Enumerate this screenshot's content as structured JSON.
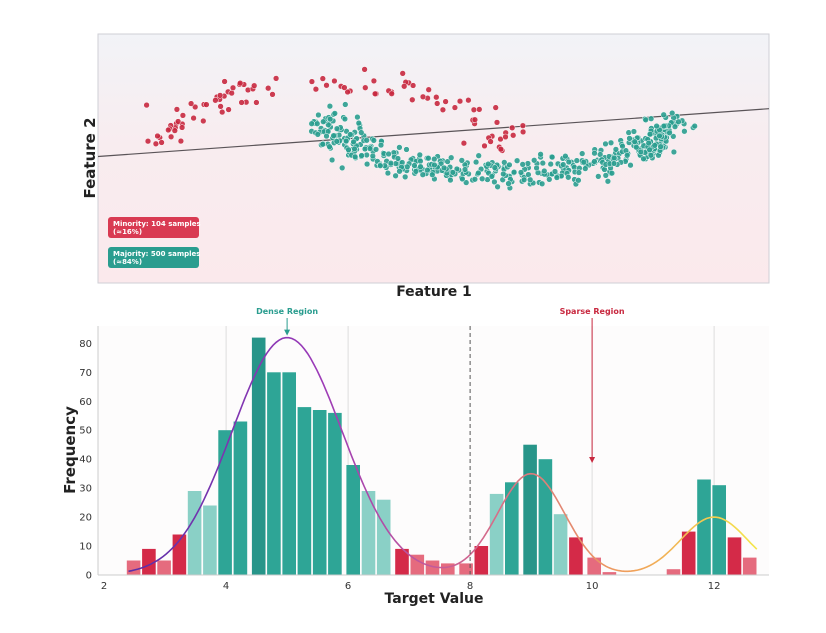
{
  "chart_data": [
    {
      "type": "scatter",
      "title": "",
      "xlabel": "Feature 1",
      "ylabel": "Feature 2",
      "xlim": [
        -1.4,
        2.6
      ],
      "ylim": [
        -1.2,
        1.3
      ],
      "grid": false,
      "decision_line": {
        "x": [
          -1.4,
          2.6
        ],
        "y": [
          0.07,
          0.55
        ]
      },
      "series": [
        {
          "name": "Minority",
          "color": "#c8283f",
          "count": 104,
          "label": "Minority: 104 samples",
          "share": "(≈16%)"
        },
        {
          "name": "Majority",
          "color": "#2a9d8f",
          "count": 500,
          "label": "Majority: 500 samples",
          "share": "(≈84%)"
        }
      ]
    },
    {
      "type": "bar",
      "title": "",
      "xlabel": "Target Value",
      "ylabel": "Frequency",
      "xlim": [
        1.9,
        12.9
      ],
      "ylim": [
        0,
        86
      ],
      "xticks": [
        "2",
        "4",
        "6",
        "8",
        "10",
        "12"
      ],
      "yticks": [
        "0",
        "10",
        "20",
        "30",
        "40",
        "50",
        "60",
        "70",
        "80"
      ],
      "bin_width": 0.255,
      "bins": [
        {
          "x": 2.5,
          "y": 5
        },
        {
          "x": 2.75,
          "y": 9
        },
        {
          "x": 3.0,
          "y": 5
        },
        {
          "x": 3.25,
          "y": 14
        },
        {
          "x": 3.5,
          "y": 29
        },
        {
          "x": 3.75,
          "y": 24
        },
        {
          "x": 4.0,
          "y": 50
        },
        {
          "x": 4.25,
          "y": 53
        },
        {
          "x": 4.55,
          "y": 82
        },
        {
          "x": 4.8,
          "y": 70
        },
        {
          "x": 5.05,
          "y": 70
        },
        {
          "x": 5.3,
          "y": 58
        },
        {
          "x": 5.55,
          "y": 57
        },
        {
          "x": 5.8,
          "y": 56
        },
        {
          "x": 6.1,
          "y": 38
        },
        {
          "x": 6.35,
          "y": 29
        },
        {
          "x": 6.6,
          "y": 26
        },
        {
          "x": 6.9,
          "y": 9
        },
        {
          "x": 7.15,
          "y": 7
        },
        {
          "x": 7.4,
          "y": 5
        },
        {
          "x": 7.65,
          "y": 4
        },
        {
          "x": 7.95,
          "y": 4
        },
        {
          "x": 8.2,
          "y": 10
        },
        {
          "x": 8.45,
          "y": 28
        },
        {
          "x": 8.7,
          "y": 32
        },
        {
          "x": 9.0,
          "y": 45
        },
        {
          "x": 9.25,
          "y": 40
        },
        {
          "x": 9.5,
          "y": 21
        },
        {
          "x": 9.75,
          "y": 13
        },
        {
          "x": 10.05,
          "y": 6
        },
        {
          "x": 10.3,
          "y": 1
        },
        {
          "x": 11.35,
          "y": 2
        },
        {
          "x": 11.6,
          "y": 15
        },
        {
          "x": 11.85,
          "y": 33
        },
        {
          "x": 12.1,
          "y": 31
        },
        {
          "x": 12.35,
          "y": 13
        },
        {
          "x": 12.6,
          "y": 6
        }
      ],
      "density_curve": {
        "components": [
          {
            "mu": 5.0,
            "sigma": 0.9,
            "height": 82
          },
          {
            "mu": 9.0,
            "sigma": 0.55,
            "height": 35
          },
          {
            "mu": 12.0,
            "sigma": 0.55,
            "height": 20
          }
        ],
        "x_range": [
          2.4,
          12.7
        ]
      },
      "threshold_line": {
        "x": 8
      },
      "vertical_gridlines": [
        4,
        6,
        10,
        12
      ],
      "annotations": [
        {
          "text": "Dense Region",
          "x": 5.0,
          "y": 82,
          "color": "#2a9d8f"
        },
        {
          "text": "Sparse Region",
          "x": 10.0,
          "y": 38,
          "color": "#c8283f"
        }
      ],
      "colors": {
        "dense_dark": "#279589",
        "dense_mid": "#2ea596",
        "dense_light": "#8ad0c6",
        "sparse_dark": "#d42a48",
        "sparse_light": "#e56b7e"
      }
    }
  ]
}
